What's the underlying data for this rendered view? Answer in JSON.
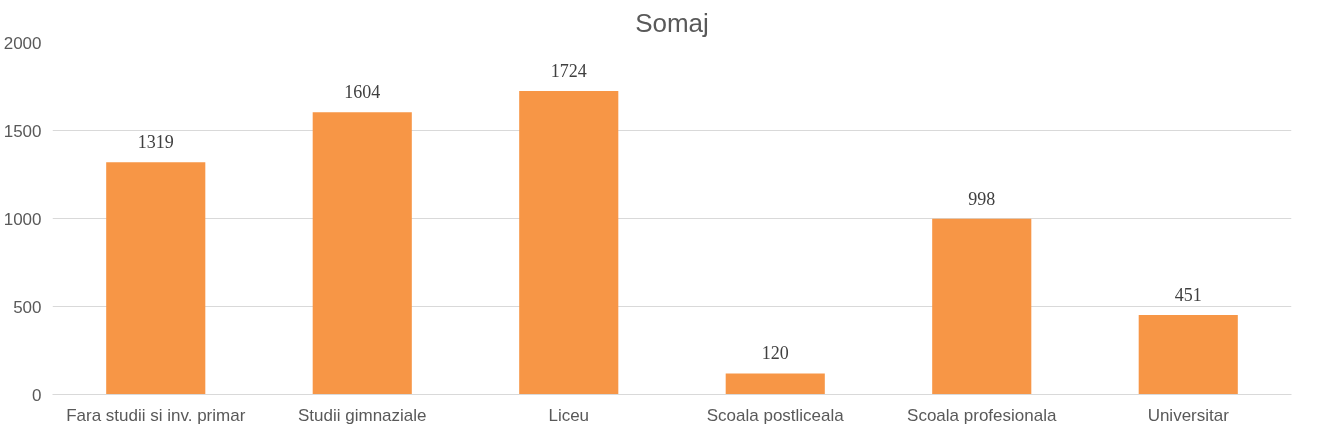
{
  "chart_data": {
    "type": "bar",
    "title": "Somaj",
    "categories": [
      "Fara studii si inv. primar",
      "Studii gimnaziale",
      "Liceu",
      "Scoala postliceala",
      "Scoala profesionala",
      "Universitar"
    ],
    "values": [
      1319,
      1604,
      1724,
      120,
      998,
      451
    ],
    "color": "#f79646",
    "ylim": [
      0,
      2000
    ],
    "yticks": [
      0,
      500,
      1000,
      1500,
      2000
    ],
    "grid": "y",
    "data_labels": true
  }
}
